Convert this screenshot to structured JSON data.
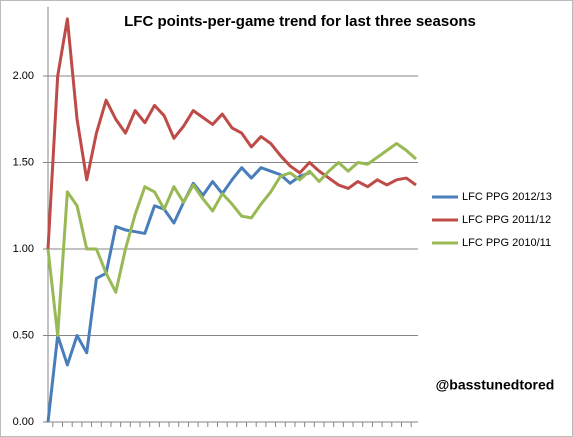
{
  "chart_data": {
    "type": "line",
    "title": "LFC points-per-game trend for last three seasons",
    "annotation": "@basstunedtored",
    "categories": [
      null,
      null,
      null,
      null,
      null,
      null,
      null,
      null,
      null,
      null,
      null,
      null,
      null,
      null,
      null,
      null,
      null,
      null,
      null,
      null,
      null,
      null,
      null,
      null,
      null,
      null,
      null,
      null,
      null,
      null,
      null,
      null,
      null,
      null,
      null,
      null,
      null,
      null,
      null
    ],
    "series": [
      {
        "name": "LFC PPG 2012/13",
        "color": "#4a7ebb",
        "values": [
          0,
          0.5,
          0.33,
          0.5,
          0.4,
          0.83,
          0.86,
          1.13,
          1.11,
          1.1,
          1.09,
          1.25,
          1.23,
          1.15,
          1.27,
          1.38,
          1.31,
          1.39,
          1.32,
          1.4,
          1.47,
          1.41,
          1.47,
          1.45,
          1.43,
          1.38,
          1.42,
          1.44,
          null,
          null,
          null,
          null,
          null,
          null,
          null,
          null,
          null,
          null,
          null
        ]
      },
      {
        "name": "LFC PPG 2011/12",
        "color": "#be4b48",
        "values": [
          1.0,
          2.0,
          2.33,
          1.75,
          1.4,
          1.67,
          1.86,
          1.75,
          1.67,
          1.8,
          1.73,
          1.83,
          1.77,
          1.64,
          1.71,
          1.8,
          1.76,
          1.72,
          1.78,
          1.7,
          1.67,
          1.59,
          1.65,
          1.61,
          1.54,
          1.48,
          1.44,
          1.5,
          1.45,
          1.41,
          1.37,
          1.35,
          1.39,
          1.36,
          1.4,
          1.37,
          1.4,
          1.41,
          1.37
        ]
      },
      {
        "name": "LFC PPG 2010/11",
        "color": "#98b954",
        "values": [
          1.0,
          0.5,
          1.33,
          1.25,
          1.0,
          1.0,
          0.86,
          0.75,
          1.0,
          1.2,
          1.36,
          1.33,
          1.23,
          1.36,
          1.27,
          1.37,
          1.29,
          1.22,
          1.32,
          1.26,
          1.19,
          1.18,
          1.26,
          1.33,
          1.42,
          1.44,
          1.4,
          1.45,
          1.39,
          1.45,
          1.5,
          1.45,
          1.5,
          1.49,
          1.53,
          1.57,
          1.61,
          1.57,
          1.52
        ]
      }
    ],
    "ylim": [
      0,
      2.4
    ],
    "yticks": [
      {
        "value": 0,
        "label": "0.00"
      },
      {
        "value": 0.5,
        "label": "0.50"
      },
      {
        "value": 1.0,
        "label": "1.00"
      },
      {
        "value": 1.5,
        "label": "1.50"
      },
      {
        "value": 2.0,
        "label": "2.00"
      }
    ],
    "grid": true
  }
}
